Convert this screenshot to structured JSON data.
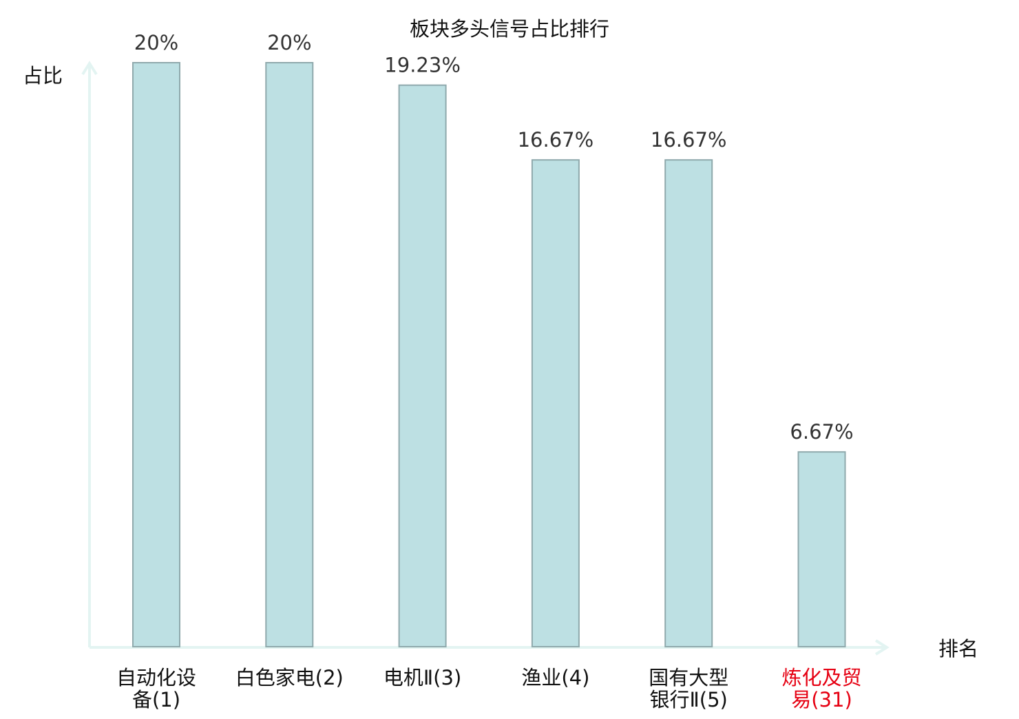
{
  "chart_data": {
    "type": "bar",
    "title": "板块多头信号占比排行",
    "ylabel": "占比",
    "xlabel": "排名",
    "ylim": [
      0,
      20
    ],
    "grid": false,
    "categories": [
      {
        "lines": [
          "自动化设",
          "备(1)"
        ],
        "highlight": false
      },
      {
        "lines": [
          "白色家电(2)"
        ],
        "highlight": false
      },
      {
        "lines": [
          "电机Ⅱ(3)"
        ],
        "highlight": false
      },
      {
        "lines": [
          "渔业(4)"
        ],
        "highlight": false
      },
      {
        "lines": [
          "国有大型",
          "银行Ⅱ(5)"
        ],
        "highlight": false
      },
      {
        "lines": [
          "炼化及贸",
          "易(31)"
        ],
        "highlight": true
      }
    ],
    "values": [
      20,
      20,
      19.23,
      16.67,
      16.67,
      6.67
    ],
    "value_labels": [
      "20%",
      "20%",
      "19.23%",
      "16.67%",
      "16.67%",
      "6.67%"
    ]
  },
  "colors": {
    "bar_fill": "#bde0e3",
    "bar_stroke": "#8fa9ac",
    "axis": "#e3f4f2",
    "highlight_text": "#e60012"
  }
}
